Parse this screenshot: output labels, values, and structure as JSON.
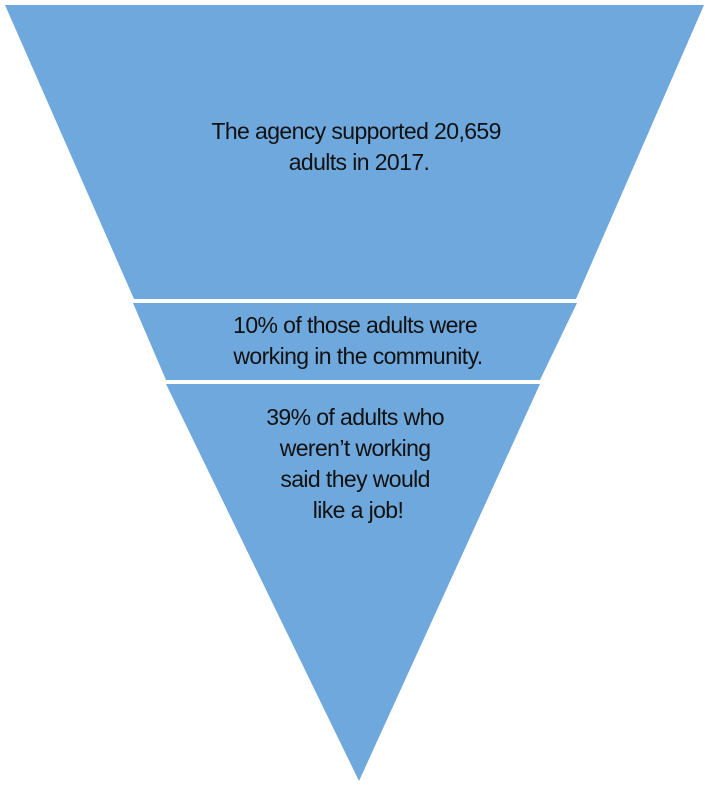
{
  "colors": {
    "segment_fill": "#6fa8dc",
    "separator": "#ffffff",
    "text": "#111111"
  },
  "funnel": {
    "segments": [
      {
        "lines": [
          "The agency supported 20,659",
          "adults in 2017."
        ]
      },
      {
        "lines": [
          "10% of those adults were",
          "working in the community."
        ]
      },
      {
        "lines": [
          "39% of adults who",
          "weren’t working",
          "said they would",
          "like a job!"
        ]
      }
    ]
  }
}
